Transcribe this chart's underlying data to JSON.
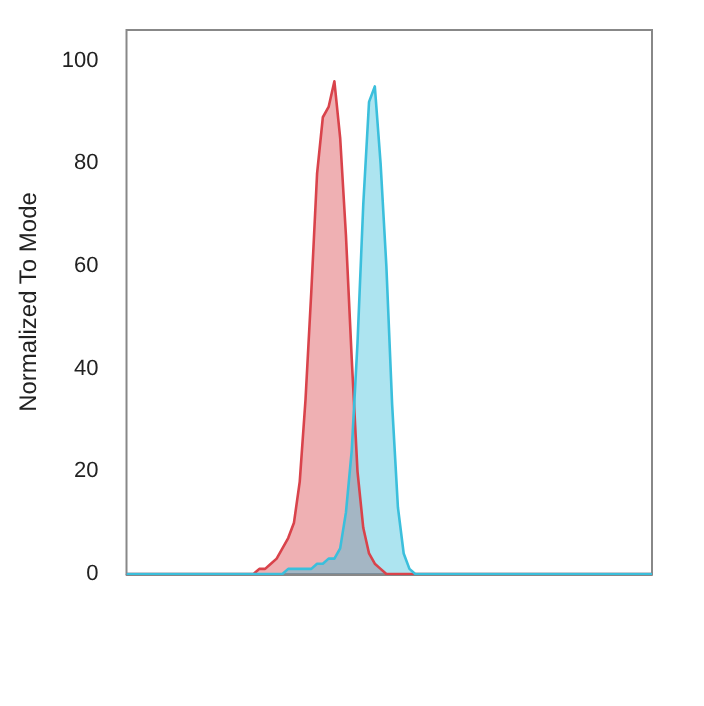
{
  "chart_data": {
    "type": "area",
    "ylabel": "Normalized To Mode",
    "categories": [
      null,
      null,
      null,
      null,
      null,
      null,
      null,
      null,
      null,
      null,
      null,
      null,
      null,
      null,
      null,
      null,
      null,
      null,
      null,
      null,
      null,
      null,
      null,
      null,
      null,
      null,
      null,
      null,
      null,
      null,
      null,
      null,
      null,
      null,
      null,
      null,
      null,
      null,
      null,
      null,
      null,
      null,
      null,
      null,
      null,
      null,
      null,
      null,
      null,
      null,
      null,
      null,
      null,
      null,
      null,
      null,
      null,
      null,
      null,
      null,
      null,
      null,
      null,
      null,
      null,
      null,
      null,
      null,
      null,
      null,
      null,
      null,
      null,
      null,
      null,
      null,
      null,
      null,
      null,
      null,
      null,
      null,
      null,
      null,
      null,
      null,
      null,
      null,
      null,
      null,
      null,
      null
    ],
    "series": [
      {
        "color": "#d9434b",
        "values": [
          0,
          0,
          0,
          0,
          0,
          0,
          0,
          0,
          0,
          0,
          0,
          0,
          0,
          0,
          0,
          0,
          0,
          0,
          0,
          0,
          0,
          0,
          0,
          1,
          1,
          2,
          3,
          5,
          7,
          10,
          18,
          34,
          55,
          78,
          89,
          91,
          96,
          85,
          66,
          42,
          20,
          9,
          4,
          2,
          1,
          0,
          0,
          0,
          0,
          0,
          0,
          0,
          0,
          0,
          0,
          0,
          0,
          0,
          0,
          0,
          0,
          0,
          0,
          0,
          0,
          0,
          0,
          0,
          0,
          0,
          0,
          0,
          0,
          0,
          0,
          0,
          0,
          0,
          0,
          0,
          0,
          0,
          0,
          0,
          0,
          0,
          0,
          0,
          0,
          0,
          0,
          0
        ]
      },
      {
        "color": "#3bbfdc",
        "values": [
          0,
          0,
          0,
          0,
          0,
          0,
          0,
          0,
          0,
          0,
          0,
          0,
          0,
          0,
          0,
          0,
          0,
          0,
          0,
          0,
          0,
          0,
          0,
          0,
          0,
          0,
          0,
          0,
          1,
          1,
          1,
          1,
          1,
          2,
          2,
          3,
          3,
          5,
          12,
          24,
          45,
          72,
          92,
          95,
          80,
          60,
          33,
          13,
          4,
          1,
          0,
          0,
          0,
          0,
          0,
          0,
          0,
          0,
          0,
          0,
          0,
          0,
          0,
          0,
          0,
          0,
          0,
          0,
          0,
          0,
          0,
          0,
          0,
          0,
          0,
          0,
          0,
          0,
          0,
          0,
          0,
          0,
          0,
          0,
          0,
          0,
          0,
          0,
          0,
          0,
          0,
          0
        ]
      }
    ],
    "ylim": [
      0,
      106
    ],
    "yticks": [
      0,
      20,
      40,
      60,
      80,
      100
    ],
    "tick_labels": "y"
  }
}
